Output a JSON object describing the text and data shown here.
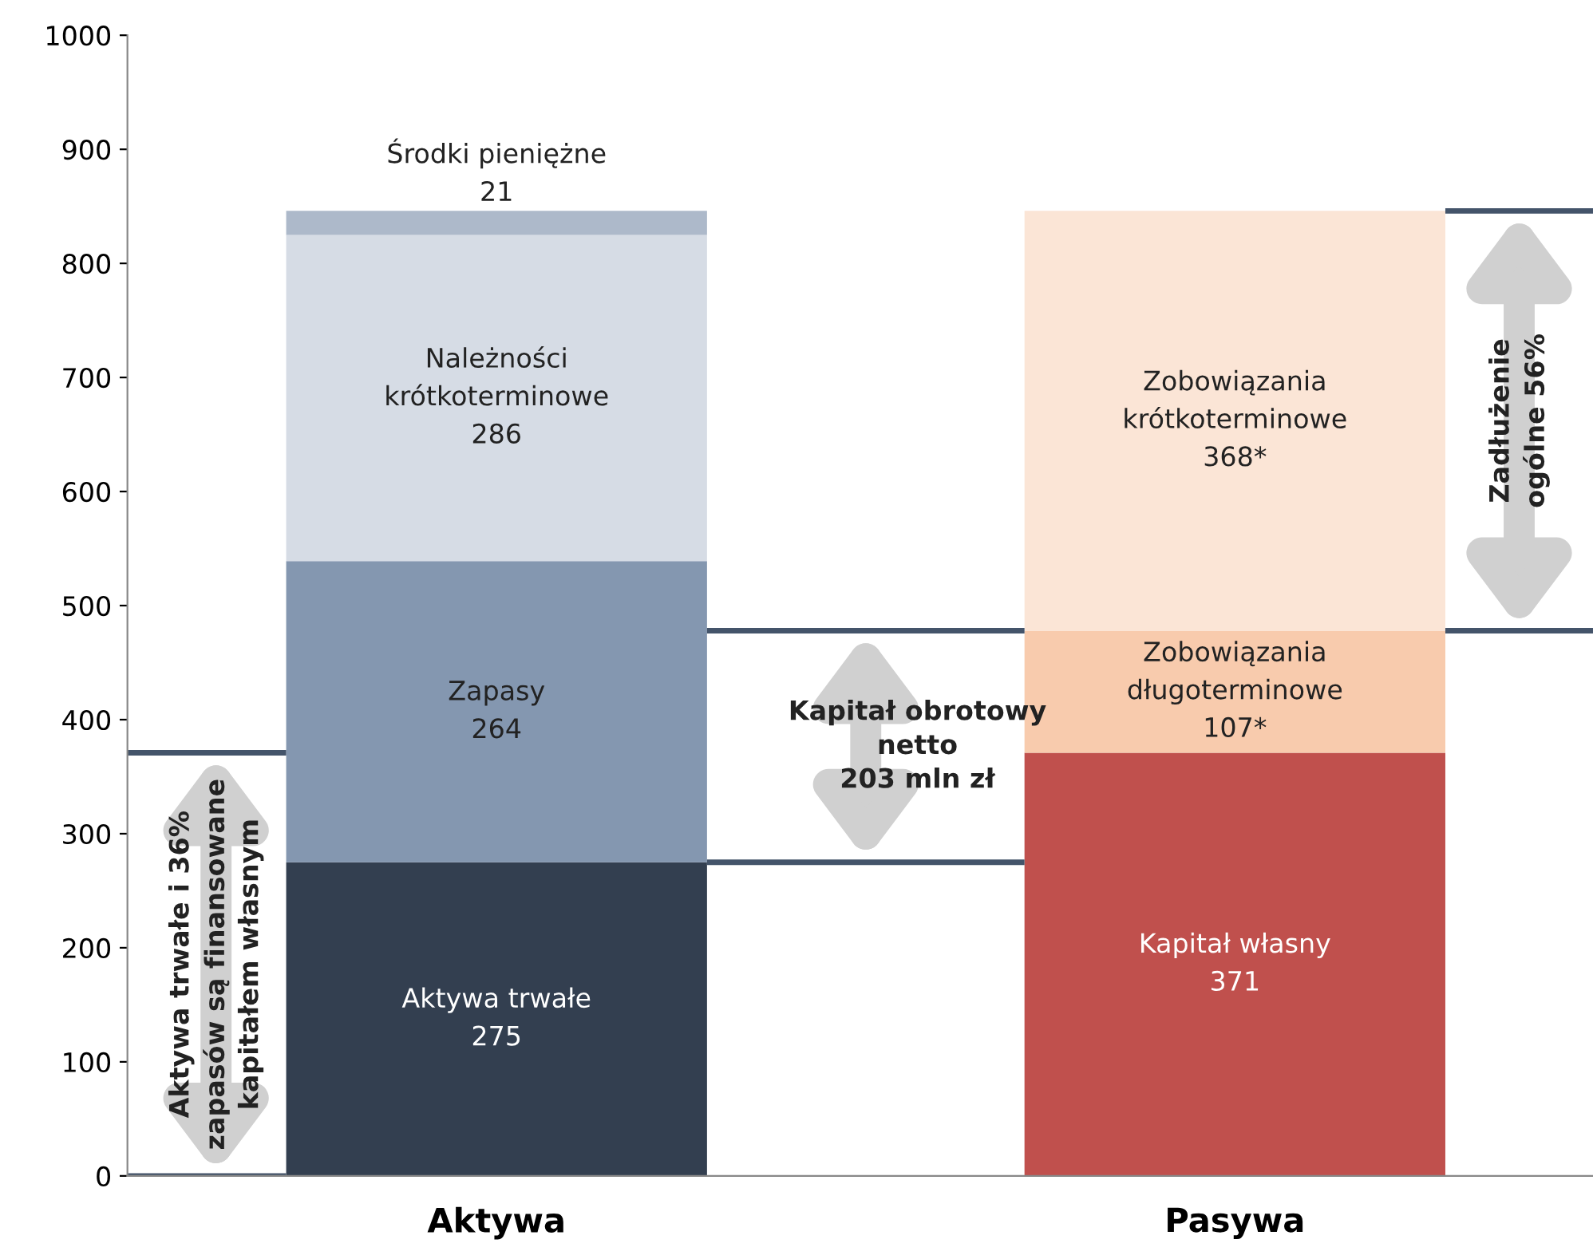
{
  "chart_data": {
    "type": "bar",
    "stacked": true,
    "categories": [
      "Aktywa",
      "Pasywa"
    ],
    "series": [
      {
        "colors": [
          "#333f50",
          "#c0504d"
        ],
        "values": [
          275,
          371
        ],
        "value_labels": [
          "Aktywa trwałe\n275",
          "Kapitał własny\n371"
        ]
      },
      {
        "colors": [
          "#8497b0",
          "#f8cbad"
        ],
        "values": [
          264,
          107
        ],
        "value_labels": [
          "Zapasy\n264",
          "Zobowiązania\ndługoterminowe\n107*"
        ]
      },
      {
        "colors": [
          "#d6dce5",
          "#fbe5d6"
        ],
        "values": [
          286,
          368
        ],
        "value_labels": [
          "Należności\nkrótkoterminowe\n286",
          "Zobowiązania\nkrótkoterminowe\n368*"
        ]
      },
      {
        "colors": [
          "#adb9ca",
          null
        ],
        "values": [
          21,
          null
        ],
        "value_labels": [
          "Środki pieniężne\n21",
          null
        ]
      }
    ],
    "ylim": [
      0,
      1000
    ],
    "yticks": [
      0,
      100,
      200,
      300,
      400,
      500,
      600,
      700,
      800,
      900,
      1000
    ],
    "grid": false,
    "legend": false,
    "annotations": [
      "Aktywa trwałe i 36%\nzapasów są finansowane\nkapitałem własnym",
      "Kapitał obrotowy\nnetto\n203 mln zł",
      "Zadłużenie\nogólne 56%"
    ]
  }
}
